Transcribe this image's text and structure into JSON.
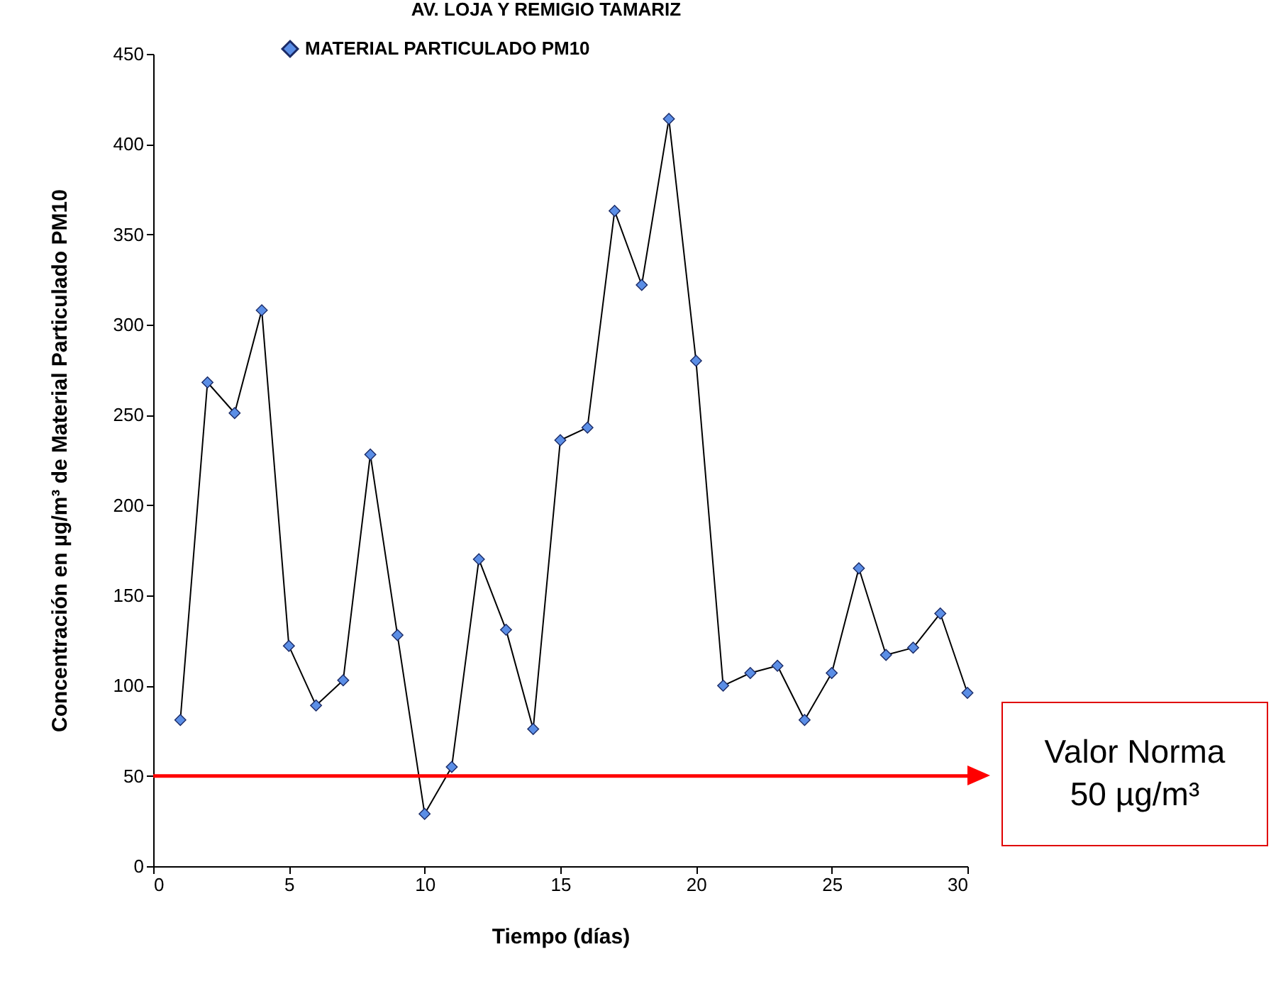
{
  "chart_data": {
    "type": "line",
    "title": "AV. LOJA Y REMIGIO TAMARIZ",
    "xlabel": "Tiempo (días)",
    "ylabel": "Concentración en µg/m³ de Material Particulado PM10",
    "x": [
      1,
      2,
      3,
      4,
      5,
      6,
      7,
      8,
      9,
      10,
      11,
      12,
      13,
      14,
      15,
      16,
      17,
      18,
      19,
      20,
      21,
      22,
      23,
      24,
      25,
      26,
      27,
      28,
      29,
      30
    ],
    "series": [
      {
        "name": "MATERIAL PARTICULADO PM10",
        "color": "#5b8ee6",
        "values": [
          81,
          268,
          251,
          308,
          122,
          89,
          103,
          228,
          128,
          29,
          55,
          170,
          131,
          76,
          236,
          243,
          363,
          322,
          414,
          280,
          100,
          107,
          111,
          81,
          107,
          165,
          117,
          121,
          140,
          96
        ]
      }
    ],
    "xlim": [
      0,
      30
    ],
    "xticks": [
      0,
      5,
      10,
      15,
      20,
      25,
      30
    ],
    "ylim": [
      0,
      450
    ],
    "yticks": [
      0,
      50,
      100,
      150,
      200,
      250,
      300,
      350,
      400,
      450
    ],
    "ref_lines": [
      {
        "axis": "y",
        "value": 50,
        "label": "Valor Norma 50 µg/m³",
        "color": "#ff0000"
      }
    ],
    "grid": false,
    "legend": "top",
    "marker": "diamond",
    "line_style": "solid"
  }
}
